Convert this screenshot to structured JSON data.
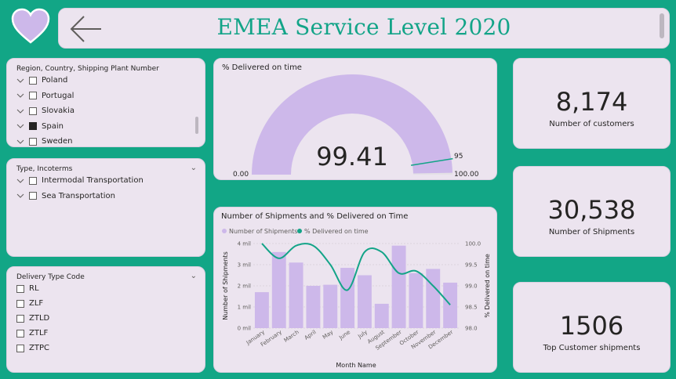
{
  "header": {
    "title": "EMEA Service Level 2020",
    "logo_icon": "heart-icon",
    "back_icon": "arrow-left-icon"
  },
  "colors": {
    "background": "#12a686",
    "card": "#ece4ef",
    "bar": "#cdb8ea",
    "line": "#13a488",
    "title": "#13a488"
  },
  "slicers": {
    "region": {
      "title": "Region, Country, Shipping Plant Number",
      "items": [
        {
          "label": "Poland",
          "checked": false
        },
        {
          "label": "Portugal",
          "checked": false
        },
        {
          "label": "Slovakia",
          "checked": false
        },
        {
          "label": "Spain",
          "checked": true
        },
        {
          "label": "Sweden",
          "checked": false
        }
      ]
    },
    "type": {
      "title": "Type, Incoterms",
      "items": [
        {
          "label": "Intermodal Transportation",
          "checked": false
        },
        {
          "label": "Sea Transportation",
          "checked": false
        }
      ]
    },
    "delivery": {
      "title": "Delivery Type Code",
      "items": [
        {
          "label": "RL",
          "checked": false
        },
        {
          "label": "ZLF",
          "checked": false
        },
        {
          "label": "ZTLD",
          "checked": false
        },
        {
          "label": "ZTLF",
          "checked": false
        },
        {
          "label": "ZTPC",
          "checked": false
        }
      ]
    }
  },
  "gauge": {
    "title": "% Delivered on time",
    "value_label": "99.41",
    "value": 99.41,
    "min": 0,
    "max": 100,
    "min_label": "0.00",
    "max_label": "100.00",
    "target": 95,
    "target_label": "95"
  },
  "kpis": [
    {
      "value": "8,174",
      "label": "Number of customers"
    },
    {
      "value": "30,538",
      "label": "Number of Shipments"
    },
    {
      "value": "1506",
      "label": "Top Customer shipments"
    }
  ],
  "chart_data": {
    "type": "bar",
    "title": "Number of Shipments and % Delivered on Time",
    "xlabel": "Month Name",
    "ylabel": "Number of Shipments",
    "y2label": "% Delivered on time",
    "legend_position": "top-left",
    "categories": [
      "January",
      "February",
      "March",
      "April",
      "May",
      "June",
      "July",
      "August",
      "September",
      "October",
      "November",
      "December"
    ],
    "ylim": [
      0,
      4000000
    ],
    "y_ticks": [
      {
        "v": 0,
        "label": "0 mil"
      },
      {
        "v": 1000000,
        "label": "1 mil"
      },
      {
        "v": 2000000,
        "label": "2 mil"
      },
      {
        "v": 3000000,
        "label": "3 mil"
      },
      {
        "v": 4000000,
        "label": "4 mil"
      }
    ],
    "y2lim": [
      98.0,
      100.0
    ],
    "y2_ticks": [
      {
        "v": 98.0,
        "label": "98.0"
      },
      {
        "v": 98.5,
        "label": "98.5"
      },
      {
        "v": 99.0,
        "label": "99.0"
      },
      {
        "v": 99.5,
        "label": "99.5"
      },
      {
        "v": 100.0,
        "label": "100.0"
      }
    ],
    "grid": true,
    "series": [
      {
        "name": "Number of Shipments",
        "kind": "bar",
        "values": [
          1700000,
          3600000,
          3100000,
          2000000,
          2050000,
          2850000,
          2500000,
          1150000,
          3900000,
          2600000,
          2800000,
          2150000
        ]
      },
      {
        "name": "% Delivered on time",
        "kind": "line",
        "values": [
          100.0,
          99.65,
          99.95,
          99.95,
          99.5,
          98.9,
          99.8,
          99.8,
          99.3,
          99.35,
          99.0,
          98.55
        ]
      }
    ]
  }
}
